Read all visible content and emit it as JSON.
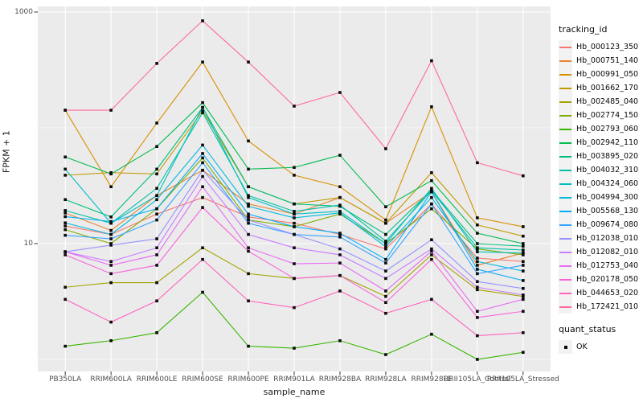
{
  "figure": {
    "background": "#FFFFFF",
    "panel_background": "#EBEBEB",
    "grid_color": "#FFFFFF",
    "axis_tick_color": "#333333",
    "axis_text_color": "#4D4D4D",
    "point_color": "#0A0A0A",
    "legend_key_background": "#F2F2F2"
  },
  "chart_data": {
    "type": "line",
    "title": "",
    "xlabel": "sample_name",
    "ylabel": "FPKM + 1",
    "y_scale": "log10",
    "ylim": [
      0.9,
      1100
    ],
    "grid": "on",
    "legend_position": "right",
    "legend_title": "tracking_id",
    "legend2_title": "quant_status",
    "legend2_items": [
      {
        "label": "OK",
        "marker": "black-square"
      }
    ],
    "y_tick_labels": [
      "1000",
      "10"
    ],
    "y_tick_values": [
      1000,
      10
    ],
    "y_minor_gridline_values": [
      100,
      1
    ],
    "point_marker": "small-black-square",
    "categories": [
      "PB350LA",
      "RRIM600LA",
      "RRIM600LE",
      "RRIM600SE",
      "RRIM600PE",
      "RRIM901LA",
      "RRIM928BA",
      "RRIM928LA",
      "RRIM928LE",
      "RRII105LA_Control",
      "RRII105LA_Stressed"
    ],
    "series": [
      {
        "name": "Hb_000123_350",
        "color": "#F8766D",
        "values": [
          14.2,
          12,
          18,
          25,
          17,
          15,
          12,
          9,
          22,
          7.5,
          7
        ]
      },
      {
        "name": "Hb_000751_140",
        "color": "#EA8331",
        "values": [
          18.4,
          13,
          26,
          43,
          22,
          18,
          25,
          15,
          28,
          6.5,
          8.3
        ]
      },
      {
        "name": "Hb_000991_050",
        "color": "#D89000",
        "values": [
          142,
          31,
          110,
          370,
          77,
          39,
          31,
          16,
          152,
          16.7,
          14
        ]
      },
      {
        "name": "Hb_001662_170",
        "color": "#C09B00",
        "values": [
          39,
          41,
          40,
          140,
          31,
          22,
          25,
          15,
          41,
          14.5,
          11.6
        ]
      },
      {
        "name": "Hb_002485_040",
        "color": "#A3A500",
        "values": [
          4.2,
          4.6,
          4.6,
          9.2,
          5.5,
          5,
          5.3,
          3.5,
          8,
          4,
          3.5
        ]
      },
      {
        "name": "Hb_002774_150",
        "color": "#7CAE00",
        "values": [
          13.2,
          10,
          20,
          55,
          16,
          14,
          18,
          10,
          20,
          9,
          8
        ]
      },
      {
        "name": "Hb_002793_060",
        "color": "#39B600",
        "values": [
          1.3,
          1.45,
          1.7,
          3.8,
          1.3,
          1.25,
          1.45,
          1.1,
          1.65,
          1.0,
          1.15
        ]
      },
      {
        "name": "Hb_002942_110",
        "color": "#00BB4E",
        "values": [
          56,
          40,
          69,
          165,
          44,
          45.5,
          58,
          20.8,
          35,
          12.3,
          10
        ]
      },
      {
        "name": "Hb_003895_020",
        "color": "#00BF7D",
        "values": [
          24,
          17,
          44,
          150,
          31,
          22,
          21,
          12,
          29,
          10,
          9.5
        ]
      },
      {
        "name": "Hb_004032_310",
        "color": "#00C1A3",
        "values": [
          19.3,
          15,
          30,
          135,
          26,
          19,
          21.5,
          10.5,
          28.6,
          9.2,
          8.8
        ]
      },
      {
        "name": "Hb_004324_060",
        "color": "#00BFC4",
        "values": [
          44,
          15,
          26,
          150,
          25,
          18,
          19,
          10,
          30,
          8.5,
          8.3
        ]
      },
      {
        "name": "Hb_004994_300",
        "color": "#00BAE0",
        "values": [
          15.1,
          12,
          24,
          71,
          21,
          16.7,
          18.4,
          9.4,
          25,
          7,
          5.8
        ]
      },
      {
        "name": "Hb_005568_130",
        "color": "#00B0F6",
        "values": [
          17.1,
          15.5,
          20,
          60,
          18,
          14,
          12.3,
          7.3,
          28,
          6,
          4.8
        ]
      },
      {
        "name": "Hb_009674_080",
        "color": "#35A2FF",
        "values": [
          11.8,
          11,
          16,
          50,
          15,
          12,
          11.4,
          6.8,
          22,
          5.5,
          6.5
        ]
      },
      {
        "name": "Hb_012038_010",
        "color": "#9590FF",
        "values": [
          8.5,
          9.7,
          11,
          43,
          16,
          12,
          9,
          5.8,
          10.8,
          4.7,
          4.1
        ]
      },
      {
        "name": "Hb_012082_010",
        "color": "#C77CFF",
        "values": [
          8.5,
          7,
          9.2,
          38,
          12,
          9.2,
          8,
          5,
          9,
          4.2,
          3.6
        ]
      },
      {
        "name": "Hb_012753_040",
        "color": "#E76BF3",
        "values": [
          8.5,
          6.5,
          8,
          31,
          9.2,
          6.7,
          6.8,
          3.9,
          8.6,
          2.6,
          3.3
        ]
      },
      {
        "name": "Hb_020178_050",
        "color": "#FA62DB",
        "values": [
          8,
          5.5,
          6.5,
          20.5,
          8.6,
          5,
          5.3,
          3.1,
          7.3,
          2.3,
          2.6
        ]
      },
      {
        "name": "Hb_044653_020",
        "color": "#FF62BC",
        "values": [
          3.3,
          2.1,
          3.2,
          7.3,
          3.2,
          2.8,
          3.9,
          2.5,
          3.3,
          1.6,
          1.7
        ]
      },
      {
        "name": "Hb_172421_010",
        "color": "#FF6A98",
        "values": [
          142,
          142,
          360,
          840,
          370,
          154,
          202,
          66,
          380,
          50,
          38.5
        ]
      }
    ]
  }
}
